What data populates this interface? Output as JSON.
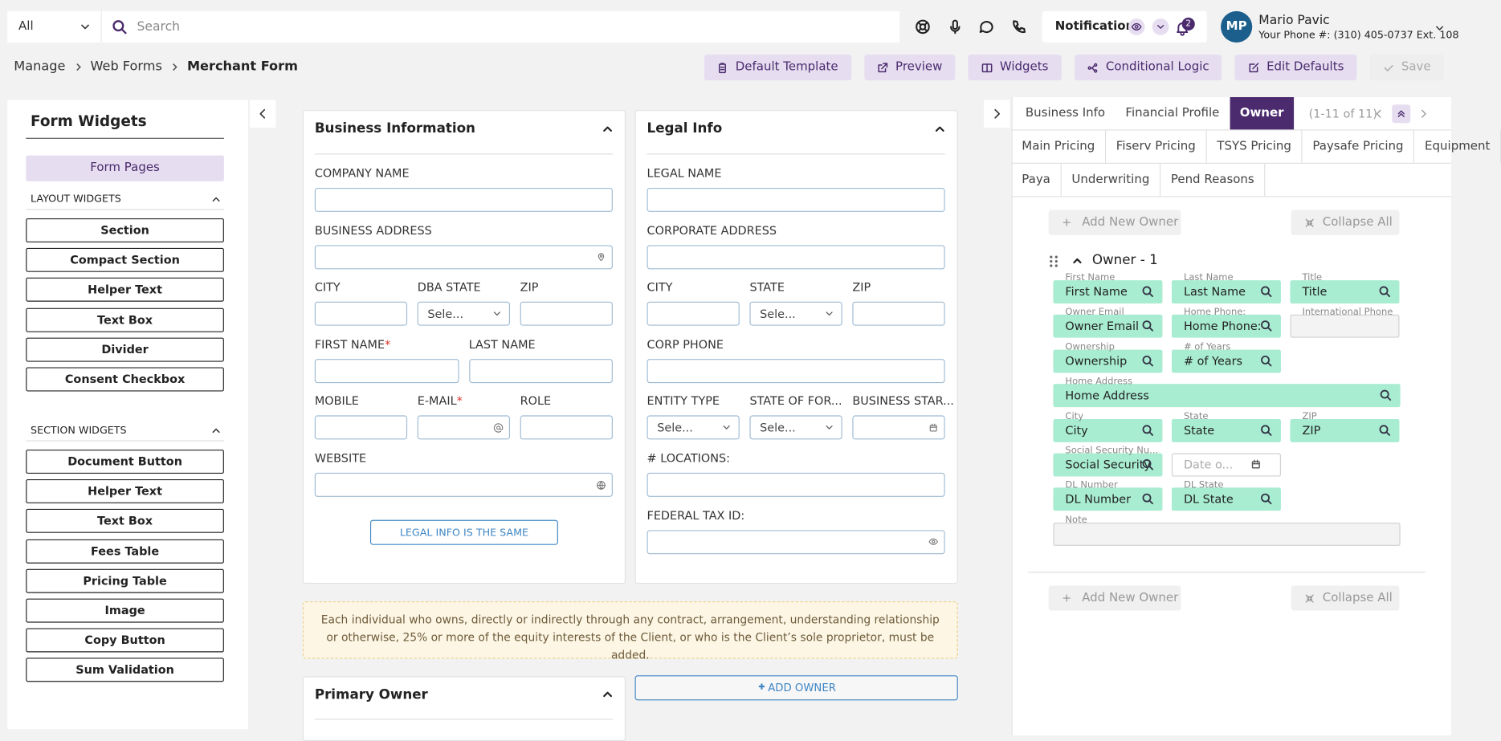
{
  "top_bar": {
    "filter": "All",
    "search_placeholder": "Search",
    "notifications": "Notifications",
    "notification_count": "2",
    "user_initials": "MP",
    "user_name": "Mario Pavic",
    "user_phone": "Your Phone #: (310) 405-0737 Ext. 108"
  },
  "breadcrumb": [
    "Manage",
    "Web Forms",
    "Merchant Form"
  ],
  "toolbar": [
    {
      "label": "Default Template",
      "icon": "clipboard"
    },
    {
      "label": "Preview",
      "icon": "external"
    },
    {
      "label": "Widgets",
      "icon": "columns"
    },
    {
      "label": "Conditional Logic",
      "icon": "branch"
    },
    {
      "label": "Edit Defaults",
      "icon": "edit"
    },
    {
      "label": "Save",
      "icon": "check",
      "disabled": true
    }
  ],
  "sidebar": {
    "title": "Form Widgets",
    "form_pages": "Form Pages",
    "layout_header": "LAYOUT WIDGETS",
    "layout_widgets": [
      "Section",
      "Compact Section",
      "Helper Text",
      "Text Box",
      "Divider",
      "Consent Checkbox"
    ],
    "section_header": "SECTION WIDGETS",
    "section_widgets": [
      "Document Button",
      "Helper Text",
      "Text Box",
      "Fees Table",
      "Pricing Table",
      "Image",
      "Copy Button",
      "Sum Validation"
    ]
  },
  "required_mark": "*",
  "business_info": {
    "title": "Business Information",
    "rows": [
      [
        {
          "label": "COMPANY NAME"
        }
      ],
      [
        {
          "label": "BUSINESS ADDRESS",
          "icon": "map"
        }
      ],
      [
        {
          "label": "CITY"
        },
        {
          "label": "DBA STATE",
          "value": "Sele...",
          "control": "select"
        },
        {
          "label": "ZIP"
        }
      ],
      [
        {
          "label": "FIRST NAME",
          "required": true
        },
        {
          "label": "LAST NAME"
        }
      ],
      [
        {
          "label": "MOBILE"
        },
        {
          "label": "E-MAIL",
          "required": true,
          "icon": "at"
        },
        {
          "label": "ROLE"
        }
      ],
      [
        {
          "label": "WEBSITE",
          "icon": "globe"
        }
      ]
    ],
    "button": "LEGAL INFO IS THE SAME"
  },
  "legal_info": {
    "title": "Legal Info",
    "rows": [
      [
        {
          "label": "LEGAL NAME"
        }
      ],
      [
        {
          "label": "CORPORATE ADDRESS"
        }
      ],
      [
        {
          "label": "CITY"
        },
        {
          "label": "STATE",
          "value": "Sele...",
          "control": "select"
        },
        {
          "label": "ZIP"
        }
      ],
      [
        {
          "label": "CORP PHONE"
        }
      ],
      [
        {
          "label": "ENTITY TYPE",
          "value": "Sele...",
          "control": "select"
        },
        {
          "label": "STATE OF FOR...",
          "value": "Sele...",
          "control": "select"
        },
        {
          "label": "BUSINESS STAR...",
          "icon": "calendar"
        }
      ],
      [
        {
          "label": "# LOCATIONS:"
        }
      ],
      [
        {
          "label": "FEDERAL TAX ID:",
          "icon": "eye"
        }
      ]
    ]
  },
  "notice": "Each individual who owns, directly or indirectly through any contract, arrangement, understanding relationship or otherwise, 25% or more of the equity interests of the Client, or who is the Client’s sole proprietor, must be added.",
  "primary_owner": {
    "title": "Primary Owner"
  },
  "add_owner": "ADD OWNER",
  "owner_panel": {
    "tabs": [
      [
        "Business Info",
        "Financial Profile",
        "Owner"
      ],
      [
        "Main Pricing",
        "Fiserv Pricing",
        "TSYS Pricing",
        "Paysafe Pricing",
        "Equipment"
      ],
      [
        "Paya",
        "Underwriting",
        "Pend Reasons"
      ]
    ],
    "active_tab": "Owner",
    "pagination": "(1-11 of 11)",
    "add_new_owner": "Add New Owner",
    "collapse_all": "Collapse All",
    "owner_title": "Owner - 1",
    "fields": [
      [
        {
          "label": "First Name",
          "value": "First Name",
          "style": "filled"
        },
        {
          "label": "Last Name",
          "value": "Last Name",
          "style": "filled"
        },
        {
          "label": "Title",
          "value": "Title",
          "style": "filled"
        }
      ],
      [
        {
          "label": "Owner Email",
          "value": "Owner Email",
          "style": "filled"
        },
        {
          "label": "Home Phone:",
          "value": "Home Phone:",
          "style": "filled"
        },
        {
          "label": "International Phone",
          "style": "empty"
        }
      ],
      [
        {
          "label": "Ownership",
          "value": "Ownership",
          "style": "filled"
        },
        {
          "label": "# of Years",
          "value": "# of Years",
          "style": "filled"
        }
      ],
      [
        {
          "label": "Home Address",
          "value": "Home Address",
          "style": "filled"
        }
      ],
      [
        {
          "label": "City",
          "value": "City",
          "style": "filled"
        },
        {
          "label": "State",
          "value": "State",
          "style": "filled"
        },
        {
          "label": "ZIP",
          "value": "ZIP",
          "style": "filled"
        }
      ],
      [
        {
          "label": "Social Security Nu...",
          "value": "Social Security",
          "style": "filled"
        },
        {
          "value": "Date o...",
          "style": "date"
        }
      ],
      [
        {
          "label": "DL Number",
          "value": "DL Number",
          "style": "filled"
        },
        {
          "label": "DL State",
          "value": "DL State",
          "style": "filled"
        }
      ],
      [
        {
          "label": "Note",
          "style": "note"
        }
      ]
    ]
  }
}
